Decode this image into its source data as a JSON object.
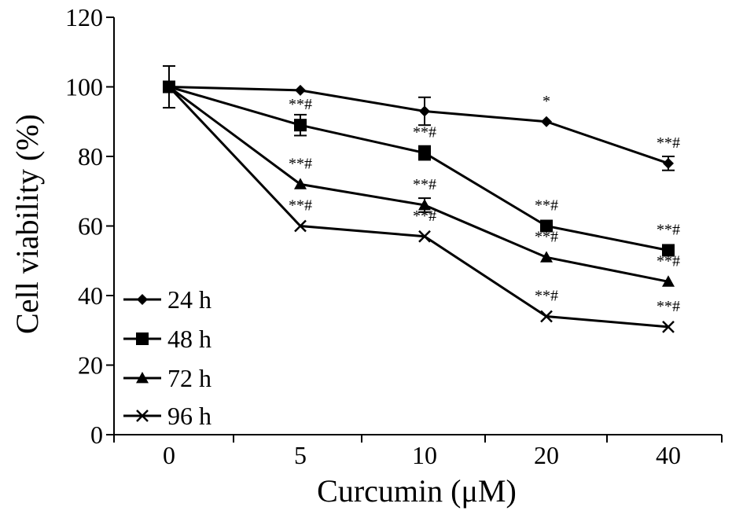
{
  "chart_data": {
    "type": "line",
    "xlabel": "Curcumin (μM)",
    "ylabel": "Cell viability (%)",
    "categories": [
      "0",
      "5",
      "10",
      "20",
      "40"
    ],
    "ylim": [
      0,
      120
    ],
    "yticks": [
      0,
      20,
      40,
      60,
      80,
      100,
      120
    ],
    "grid": false,
    "legend_position": "bottom-left",
    "series": [
      {
        "name": "24 h",
        "marker": "diamond",
        "values": [
          100,
          99,
          93,
          90,
          78
        ],
        "errors": [
          6,
          0,
          4,
          0,
          2
        ],
        "annotations": [
          "",
          "",
          "",
          "*",
          "**#"
        ]
      },
      {
        "name": "48 h",
        "marker": "square",
        "values": [
          100,
          89,
          81,
          60,
          53
        ],
        "errors": [
          0,
          3,
          2,
          0,
          0
        ],
        "annotations": [
          "",
          "**#",
          "**#",
          "**#",
          "**#"
        ]
      },
      {
        "name": "72 h",
        "marker": "triangle",
        "values": [
          100,
          72,
          66,
          51,
          44
        ],
        "errors": [
          0,
          0,
          2,
          0,
          0
        ],
        "annotations": [
          "",
          "**#",
          "**#",
          "**#",
          "**#"
        ]
      },
      {
        "name": "96 h",
        "marker": "x",
        "values": [
          100,
          60,
          57,
          34,
          31
        ],
        "errors": [
          0,
          0,
          0,
          0,
          0
        ],
        "annotations": [
          "",
          "**#",
          "**#",
          "**#",
          "**#"
        ]
      }
    ]
  }
}
